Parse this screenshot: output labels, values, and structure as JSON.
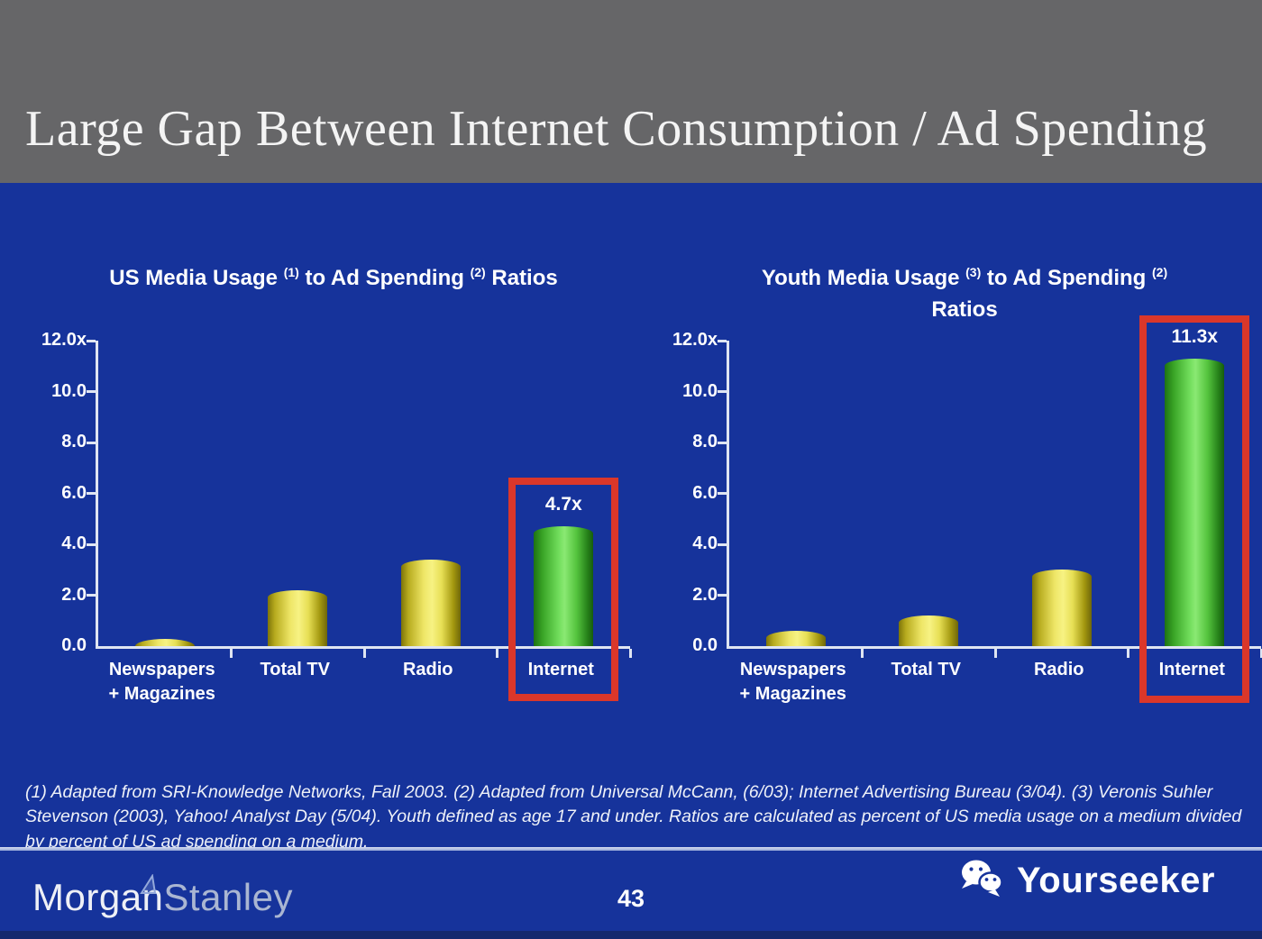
{
  "slide": {
    "title": "Large Gap Between Internet Consumption / Ad Spending",
    "page_number": "43",
    "footnote": "(1) Adapted from SRI-Knowledge Networks, Fall 2003.  (2) Adapted from Universal McCann, (6/03); Internet Advertising Bureau (3/04). (3) Veronis Suhler Stevenson (2003), Yahoo! Analyst Day (5/04).  Youth defined as age 17 and under.  Ratios are calculated as percent of US media usage on a medium divided by percent of US ad spending on a medium."
  },
  "footer": {
    "logo_part1": "Morgan",
    "logo_part2": "Stanley",
    "watermark_text": "Yourseeker",
    "watermark_icon": "wechat-bubbles-icon",
    "logo_icon": "morgan-stanley-triangle-icon"
  },
  "colors": {
    "background_blue": "#16339B",
    "header_gray": "#666668",
    "bar_yellow": "#F0E95C",
    "bar_green": "#5CD348",
    "highlight_red": "#DA372A",
    "axis_white": "#DFE5F2"
  },
  "chart_data": [
    {
      "type": "bar",
      "title": "US Media Usage (1) to Ad Spending (2) Ratios",
      "title_parts": [
        {
          "text": "US Media Usage "
        },
        {
          "sup": "(1)"
        },
        {
          "text": " to Ad Spending "
        },
        {
          "sup": "(2)"
        },
        {
          "text": " Ratios"
        }
      ],
      "categories": [
        "Newspapers\n+ Magazines",
        "Total TV",
        "Radio",
        "Internet"
      ],
      "values": [
        0.3,
        2.2,
        3.4,
        4.7
      ],
      "bar_labels": [
        "",
        "",
        "",
        "4.7x"
      ],
      "highlight_index": 3,
      "y_ticks": [
        "12.0x",
        "10.0",
        "8.0",
        "6.0",
        "4.0",
        "2.0",
        "0.0"
      ],
      "ylim": [
        0,
        12
      ],
      "grid": false,
      "legend": false
    },
    {
      "type": "bar",
      "title": "Youth Media Usage (3) to Ad Spending (2) Ratios",
      "title_parts": [
        {
          "text": "Youth Media Usage "
        },
        {
          "sup": "(3)"
        },
        {
          "text": " to Ad Spending "
        },
        {
          "sup": "(2)"
        },
        {
          "br": true
        },
        {
          "text": "Ratios"
        }
      ],
      "categories": [
        "Newspapers\n+ Magazines",
        "Total TV",
        "Radio",
        "Internet"
      ],
      "values": [
        0.6,
        1.2,
        3.0,
        11.3
      ],
      "bar_labels": [
        "",
        "",
        "",
        "11.3x"
      ],
      "highlight_index": 3,
      "y_ticks": [
        "12.0x",
        "10.0",
        "8.0",
        "6.0",
        "4.0",
        "2.0",
        "0.0"
      ],
      "ylim": [
        0,
        12
      ],
      "grid": false,
      "legend": false
    }
  ]
}
